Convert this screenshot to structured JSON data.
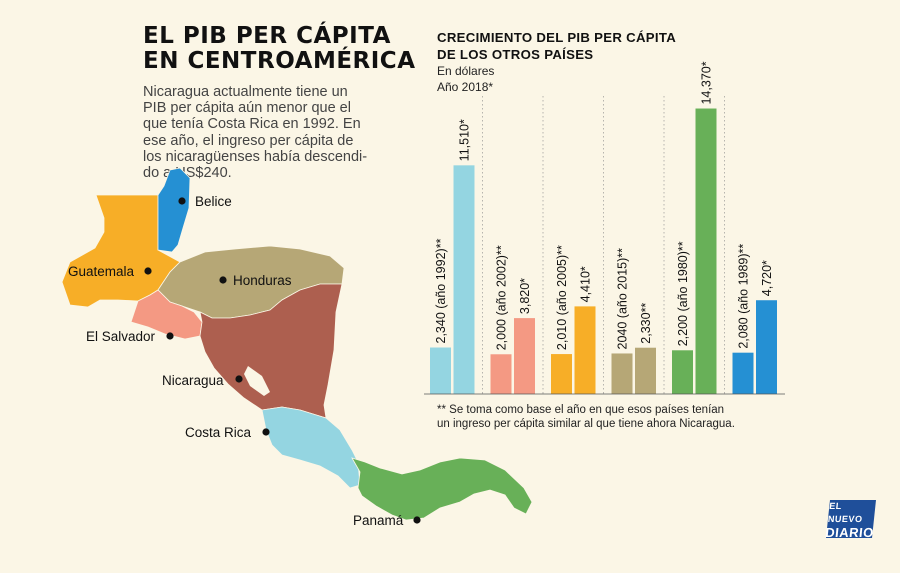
{
  "title": [
    "EL PIB PER CÁPITA",
    "EN CENTROAMÉRICA"
  ],
  "intro": [
    "Nicaragua actualmente tiene un",
    "PIB per cápita aún menor que el",
    "que tenía Costa Rica en 1992. En",
    "ese año, el ingreso per cápita de",
    "los nicaragüenses había descendi-",
    "do a US$240."
  ],
  "map_labels": {
    "belice": "Belice",
    "guatemala": "Guatemala",
    "honduras": "Honduras",
    "el_salvador": "El Salvador",
    "nicaragua": "Nicaragua",
    "costa_rica": "Costa Rica",
    "panama": "Panamá"
  },
  "colors": {
    "background": "#fbf6e6",
    "guatemala": "#f7ae27",
    "belice": "#2590d3",
    "honduras": "#b6a776",
    "el_salvador": "#f49983",
    "nicaragua": "#ad5f4f",
    "costa_rica": "#94d5e1",
    "panama": "#68b058",
    "logo": "#1f4f9a"
  },
  "chart_title": [
    "CRECIMIENTO DEL PIB PER CÁPITA",
    "DE LOS OTROS PAÍSES"
  ],
  "chart_subtitle": [
    "En dólares",
    "Año 2018*"
  ],
  "footnote": [
    "** Se toma como base el año en que esos países tenían",
    "un ingreso per cápita similar al que tiene ahora Nicaragua."
  ],
  "logo": [
    "EL NUEVO",
    "DIARIO"
  ],
  "chart_data": {
    "type": "bar",
    "ylim": [
      0,
      15000
    ],
    "grid": false,
    "groups": [
      {
        "country": "costa_rica",
        "color": "#94d5e1",
        "bars": [
          {
            "value": 2340,
            "label": "2,340 (año 1992)**"
          },
          {
            "value": 11510,
            "label": "11,510*"
          }
        ]
      },
      {
        "country": "el_salvador",
        "color": "#f49983",
        "bars": [
          {
            "value": 2000,
            "label": "2,000 (año 2002)**"
          },
          {
            "value": 3820,
            "label": "3,820*"
          }
        ]
      },
      {
        "country": "guatemala",
        "color": "#f7ae27",
        "bars": [
          {
            "value": 2010,
            "label": "2,010 (año 2005)**"
          },
          {
            "value": 4410,
            "label": "4,410*"
          }
        ]
      },
      {
        "country": "honduras",
        "color": "#b6a776",
        "bars": [
          {
            "value": 2040,
            "label": "2040 (año 2015)**"
          },
          {
            "value": 2330,
            "label": "2,330**"
          }
        ]
      },
      {
        "country": "panama",
        "color": "#68b058",
        "bars": [
          {
            "value": 2200,
            "label": "2,200 (año 1980)**"
          },
          {
            "value": 14370,
            "label": "14,370*"
          }
        ]
      },
      {
        "country": "belice",
        "color": "#2590d3",
        "bars": [
          {
            "value": 2080,
            "label": "2,080 (año 1989)**"
          },
          {
            "value": 4720,
            "label": "4,720*"
          }
        ]
      }
    ]
  }
}
